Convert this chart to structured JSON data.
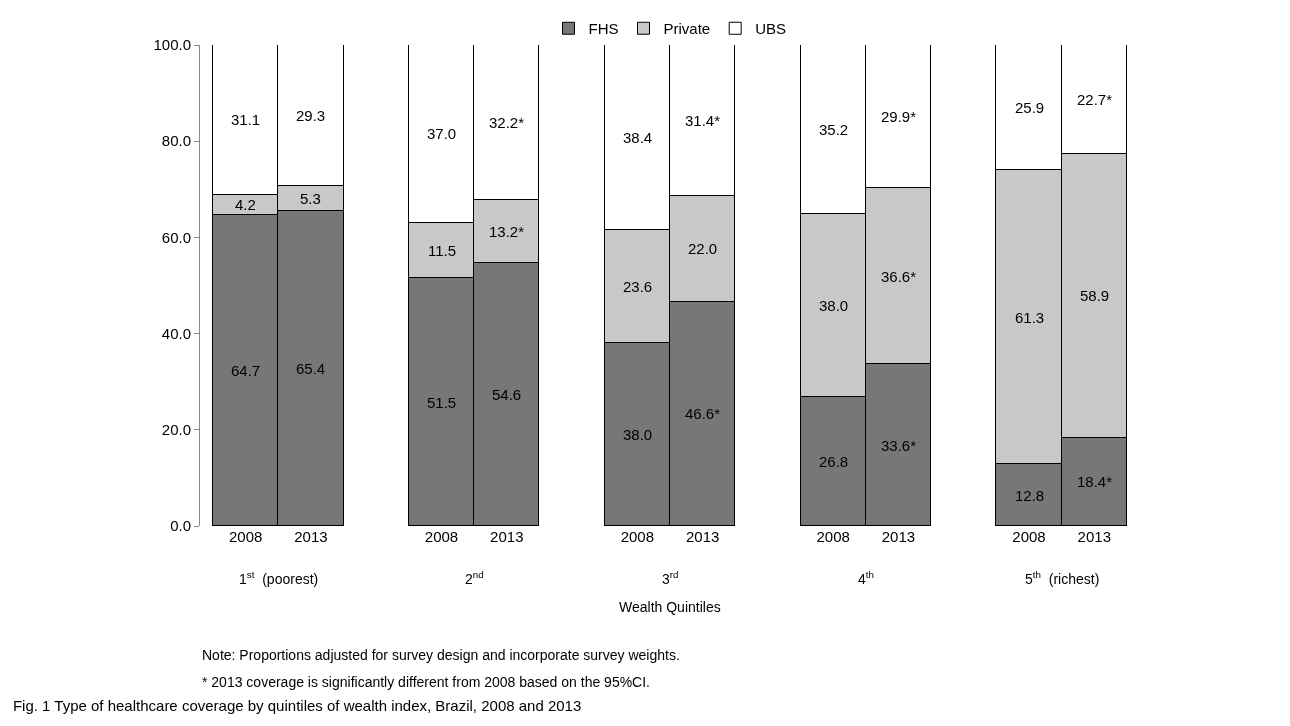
{
  "chart_data": {
    "type": "bar",
    "stacked": true,
    "title": "Fig. 1 Type of healthcare coverage by quintiles of wealth index, Brazil, 2008 and 2013",
    "xlabel": "Wealth Quintiles",
    "categories": [
      "2008",
      "2013",
      null,
      "2008",
      "2013",
      null,
      "2008",
      "2013",
      null,
      "2008",
      "2013",
      null,
      "2008",
      "2013"
    ],
    "series": [
      {
        "name": "FHS",
        "color": "#777777",
        "values": [
          64.7,
          65.4,
          null,
          51.5,
          54.6,
          null,
          38.0,
          46.6,
          null,
          26.8,
          33.6,
          null,
          12.8,
          18.4
        ],
        "value_labels": [
          "64.7",
          "65.4",
          null,
          "51.5",
          "54.6",
          null,
          "38.0",
          "46.6*",
          null,
          "26.8",
          "33.6*",
          null,
          "12.8",
          "18.4*"
        ]
      },
      {
        "name": "Private",
        "color": "#c8c8c8",
        "values": [
          4.2,
          5.3,
          null,
          11.5,
          13.2,
          null,
          23.6,
          22.0,
          null,
          38.0,
          36.6,
          null,
          61.3,
          58.9
        ],
        "value_labels": [
          "4.2",
          "5.3",
          null,
          "11.5",
          "13.2*",
          null,
          "23.6",
          "22.0",
          null,
          "38.0",
          "36.6*",
          null,
          "61.3",
          "58.9"
        ]
      },
      {
        "name": "UBS",
        "color": "#ffffff",
        "values": [
          31.1,
          29.3,
          null,
          37.0,
          32.2,
          null,
          38.4,
          31.4,
          null,
          35.2,
          29.9,
          null,
          25.9,
          22.7
        ],
        "value_labels": [
          "31.1",
          "29.3",
          null,
          "37.0",
          "32.2*",
          null,
          "38.4",
          "31.4*",
          null,
          "35.2",
          "29.9*",
          null,
          "25.9",
          "22.7*"
        ]
      }
    ],
    "ylim": [
      0,
      100
    ],
    "yticks": [
      {
        "value": 0,
        "label": "0.0"
      },
      {
        "value": 20,
        "label": "20.0"
      },
      {
        "value": 40,
        "label": "40.0"
      },
      {
        "value": 60,
        "label": "60.0"
      },
      {
        "value": 80,
        "label": "80.0"
      },
      {
        "value": 100,
        "label": "100.0"
      }
    ],
    "legend": "top",
    "annotations": [
      "1$^{st}$  (poorest)",
      "2$^{nd}$",
      "3$^{rd}$",
      "4$^{th}$",
      "5$^{th}$  (richest)",
      "Note: Proportions adjusted for survey design and incorporate survey weights.",
      "* 2013 coverage is significantly different from 2008 based on the 95%CI."
    ]
  }
}
